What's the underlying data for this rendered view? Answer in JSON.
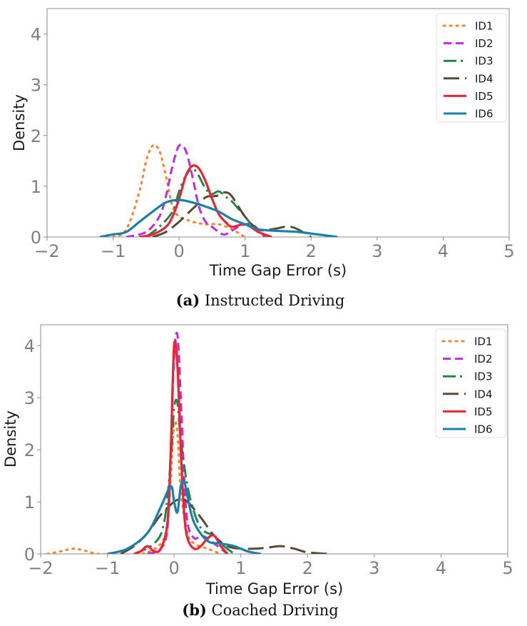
{
  "colors": {
    "ID1": "#ff7f2a",
    "ID2": "#c12be6",
    "ID3": "#1e8a4a",
    "ID4": "#5a4a32",
    "ID5": "#ee2233",
    "ID6": "#1a80aa"
  },
  "chart_data": [
    {
      "type": "line",
      "subtype": "kde",
      "caption_label": "(a)",
      "caption_text": "Instructed Driving",
      "xlabel": "Time Gap Error (s)",
      "ylabel": "Density",
      "xlim": [
        -2,
        5
      ],
      "ylim": [
        0,
        4.5
      ],
      "xticks": [
        "−2",
        "−1",
        "0",
        "1",
        "2",
        "3",
        "4",
        "5"
      ],
      "yticks": [
        "0",
        "1",
        "2",
        "3",
        "4"
      ],
      "grid": false,
      "legend_position": "top-right",
      "series": [
        {
          "name": "ID1",
          "line_style": "dotted",
          "x": [
            -1.0,
            -0.8,
            -0.6,
            -0.5,
            -0.4,
            -0.3,
            -0.2,
            -0.1,
            0.0,
            0.1,
            0.2,
            0.4,
            0.6,
            0.8,
            1.0
          ],
          "y": [
            0.0,
            0.15,
            0.9,
            1.5,
            1.8,
            1.7,
            1.2,
            0.6,
            0.4,
            0.35,
            0.3,
            0.25,
            0.25,
            0.15,
            0.0
          ]
        },
        {
          "name": "ID2",
          "line_style": "dashed",
          "x": [
            -0.8,
            -0.5,
            -0.3,
            -0.2,
            -0.1,
            0.0,
            0.1,
            0.2,
            0.3,
            0.4,
            0.5,
            0.6,
            0.7,
            0.9,
            1.1,
            1.3
          ],
          "y": [
            0.0,
            0.1,
            0.4,
            0.8,
            1.4,
            1.8,
            1.7,
            1.2,
            0.6,
            0.3,
            0.2,
            0.1,
            0.05,
            0.2,
            0.25,
            0.0
          ]
        },
        {
          "name": "ID3",
          "line_style": "dashdot",
          "x": [
            -0.5,
            -0.3,
            -0.1,
            0.0,
            0.1,
            0.2,
            0.3,
            0.4,
            0.5,
            0.6,
            0.7,
            0.8,
            0.9,
            1.0,
            1.2,
            1.4
          ],
          "y": [
            0.0,
            0.2,
            0.5,
            0.9,
            1.2,
            1.35,
            1.2,
            0.95,
            0.85,
            0.9,
            0.8,
            0.7,
            0.55,
            0.4,
            0.1,
            0.0
          ]
        },
        {
          "name": "ID4",
          "line_style": "longdash",
          "x": [
            -0.4,
            -0.2,
            0.0,
            0.2,
            0.4,
            0.5,
            0.6,
            0.7,
            0.8,
            1.0,
            1.2,
            1.4,
            1.6,
            1.7,
            1.8,
            2.0
          ],
          "y": [
            0.0,
            0.1,
            0.3,
            0.55,
            0.78,
            0.8,
            0.82,
            0.88,
            0.8,
            0.4,
            0.15,
            0.15,
            0.2,
            0.2,
            0.15,
            0.0
          ]
        },
        {
          "name": "ID5",
          "line_style": "solid",
          "x": [
            -0.6,
            -0.4,
            -0.2,
            -0.1,
            0.0,
            0.1,
            0.2,
            0.3,
            0.4,
            0.5,
            0.6,
            0.7,
            0.8,
            1.0,
            1.2,
            1.4
          ],
          "y": [
            0.0,
            0.05,
            0.2,
            0.4,
            0.75,
            1.2,
            1.4,
            1.35,
            1.1,
            0.75,
            0.45,
            0.3,
            0.2,
            0.25,
            0.1,
            0.0
          ]
        },
        {
          "name": "ID6",
          "line_style": "solid",
          "x": [
            -1.2,
            -1.0,
            -0.8,
            -0.6,
            -0.4,
            -0.2,
            0.0,
            0.2,
            0.4,
            0.6,
            0.8,
            1.0,
            1.2,
            1.5,
            1.8,
            2.1,
            2.4
          ],
          "y": [
            0.0,
            0.05,
            0.1,
            0.3,
            0.5,
            0.68,
            0.73,
            0.68,
            0.6,
            0.5,
            0.35,
            0.25,
            0.15,
            0.12,
            0.1,
            0.05,
            0.0
          ]
        }
      ]
    },
    {
      "type": "line",
      "subtype": "kde",
      "caption_label": "(b)",
      "caption_text": "Coached Driving",
      "xlabel": "Time Gap Error (s)",
      "ylabel": "Density",
      "xlim": [
        -2,
        5
      ],
      "ylim": [
        0,
        4.4
      ],
      "xticks": [
        "−2",
        "−1",
        "0",
        "1",
        "2",
        "3",
        "4",
        "5"
      ],
      "yticks": [
        "0",
        "1",
        "2",
        "3",
        "4"
      ],
      "grid": false,
      "legend_position": "top-right",
      "series": [
        {
          "name": "ID1",
          "line_style": "dotted",
          "x": [
            -1.9,
            -1.7,
            -1.5,
            -1.3,
            -1.1,
            -0.5,
            -0.2,
            -0.1,
            -0.05,
            0.0,
            0.05,
            0.1,
            0.2,
            0.3,
            0.5,
            0.7
          ],
          "y": [
            0.0,
            0.05,
            0.1,
            0.05,
            0.0,
            0.0,
            0.2,
            0.6,
            1.5,
            2.5,
            2.3,
            1.2,
            0.4,
            0.2,
            0.1,
            0.0
          ]
        },
        {
          "name": "ID2",
          "line_style": "dashed",
          "x": [
            -0.4,
            -0.2,
            -0.1,
            -0.05,
            0.0,
            0.05,
            0.1,
            0.15,
            0.2,
            0.3,
            0.4,
            0.5,
            0.6,
            0.8
          ],
          "y": [
            0.0,
            0.1,
            0.5,
            2.0,
            3.8,
            4.2,
            3.0,
            1.5,
            0.6,
            0.3,
            0.35,
            0.3,
            0.2,
            0.0
          ]
        },
        {
          "name": "ID3",
          "line_style": "dashdot",
          "x": [
            -0.6,
            -0.3,
            -0.15,
            -0.05,
            0.0,
            0.05,
            0.1,
            0.2,
            0.3,
            0.4,
            0.5,
            0.6,
            0.7,
            0.9
          ],
          "y": [
            0.0,
            0.2,
            0.6,
            1.8,
            2.8,
            2.9,
            2.2,
            1.3,
            0.8,
            0.5,
            0.4,
            0.35,
            0.2,
            0.0
          ]
        },
        {
          "name": "ID4",
          "line_style": "longdash",
          "x": [
            -0.8,
            -0.6,
            -0.4,
            -0.2,
            0.0,
            0.1,
            0.2,
            0.4,
            0.6,
            0.8,
            1.0,
            1.2,
            1.4,
            1.6,
            1.8,
            2.0,
            2.3
          ],
          "y": [
            0.0,
            0.15,
            0.4,
            0.75,
            1.0,
            1.05,
            1.0,
            0.7,
            0.35,
            0.15,
            0.1,
            0.1,
            0.12,
            0.15,
            0.1,
            0.03,
            0.0
          ]
        },
        {
          "name": "ID5",
          "line_style": "solid",
          "x": [
            -0.6,
            -0.5,
            -0.4,
            -0.3,
            -0.2,
            -0.1,
            -0.05,
            0.0,
            0.05,
            0.1,
            0.15,
            0.2,
            0.3,
            0.4,
            0.5,
            0.6,
            0.7,
            0.8
          ],
          "y": [
            0.0,
            0.05,
            0.15,
            0.05,
            0.1,
            0.6,
            2.0,
            4.0,
            3.6,
            2.0,
            0.8,
            0.3,
            0.1,
            0.15,
            0.3,
            0.35,
            0.15,
            0.0
          ]
        },
        {
          "name": "ID6",
          "line_style": "solid",
          "x": [
            -1.0,
            -0.7,
            -0.4,
            -0.2,
            -0.05,
            0.0,
            0.05,
            0.1,
            0.15,
            0.2,
            0.3,
            0.5,
            0.7,
            0.9,
            1.1,
            1.3
          ],
          "y": [
            0.0,
            0.1,
            0.4,
            0.9,
            1.3,
            1.0,
            0.8,
            1.3,
            1.4,
            1.1,
            0.6,
            0.25,
            0.2,
            0.15,
            0.05,
            0.0
          ]
        }
      ]
    }
  ]
}
